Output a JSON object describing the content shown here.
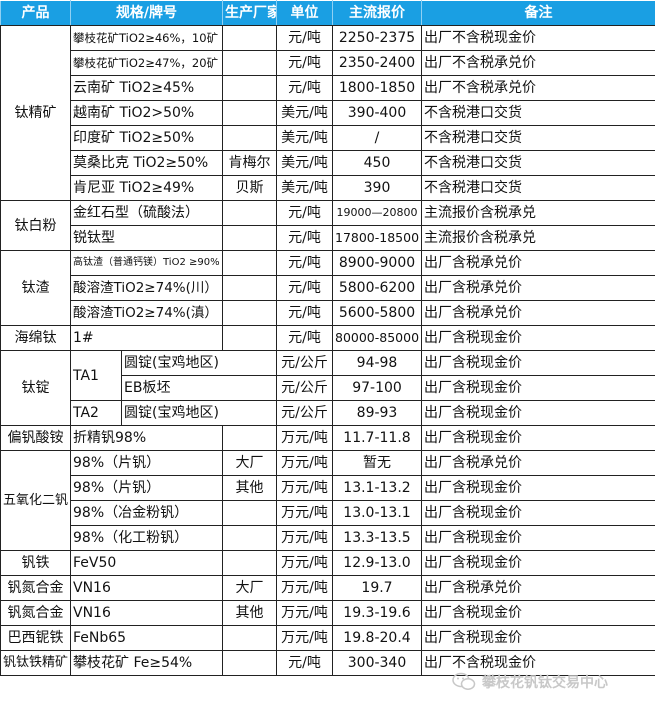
{
  "header": {
    "product": "产品",
    "spec": "规格/牌号",
    "factory": "生产厂家",
    "unit": "单位",
    "price": "主流报价",
    "note": "备注"
  },
  "colors": {
    "header_bg": "#1a9fe3",
    "header_text": "#ffffff",
    "border": "#222222"
  },
  "products": [
    {
      "name": "钛精矿",
      "items": [
        {
          "spec": "攀枝花矿TiO2≥46%，10矿",
          "factory": "",
          "unit": "元/吨",
          "price": "2250-2375",
          "note": "出厂不含税现金价"
        },
        {
          "spec": "攀枝花矿TiO2≥47%，20矿",
          "factory": "",
          "unit": "元/吨",
          "price": "2350-2400",
          "note": "出厂不含税承兑价"
        },
        {
          "spec": "云南矿 TiO2≥45%",
          "factory": "",
          "unit": "元/吨",
          "price": "1800-1850",
          "note": "出厂不含税承兑价"
        },
        {
          "spec": "越南矿 TiO2>50%",
          "factory": "",
          "unit": "美元/吨",
          "price": "390-400",
          "note": "不含税港口交货"
        },
        {
          "spec": "印度矿 TiO2≥50%",
          "factory": "",
          "unit": "美元/吨",
          "price": "/",
          "note": "不含税港口交货"
        },
        {
          "spec": "莫桑比克 TiO2≥50%",
          "factory": "肯梅尔",
          "unit": "美元/吨",
          "price": "450",
          "note": "不含税港口交货"
        },
        {
          "spec": "肯尼亚 TiO2≥49%",
          "factory": "贝斯",
          "unit": "美元/吨",
          "price": "390",
          "note": "不含税港口交货"
        }
      ]
    },
    {
      "name": "钛白粉",
      "items": [
        {
          "spec": "金红石型（硫酸法）",
          "factory": "",
          "unit": "元/吨",
          "price": "19000—20800",
          "note": "主流报价含税承兑"
        },
        {
          "spec": "锐钛型",
          "factory": "",
          "unit": "元/吨",
          "price": "17800-18500",
          "note": "主流报价含税承兑"
        }
      ]
    },
    {
      "name": "钛渣",
      "items": [
        {
          "spec": "高钛渣（普通钙镁）TiO2 ≥90%",
          "factory": "",
          "unit": "元/吨",
          "price": "8900-9000",
          "note": "出厂含税承兑价"
        },
        {
          "spec": "酸溶渣TiO2≥74%(川）",
          "factory": "",
          "unit": "元/吨",
          "price": "5800-6200",
          "note": "出厂含税承兑价"
        },
        {
          "spec": "酸溶渣TiO2≥74%(滇）",
          "factory": "",
          "unit": "元/吨",
          "price": "5600-5800",
          "note": "出厂含税承兑价"
        }
      ]
    },
    {
      "name": "海绵钛",
      "items": [
        {
          "spec": "1#",
          "factory": "",
          "unit": "元/吨",
          "price": "80000-85000",
          "note": "出厂含税现金价"
        }
      ]
    },
    {
      "name": "钛锭",
      "items": [
        {
          "grade": "TA1",
          "form": "圆锭(宝鸡地区)",
          "unit": "元/公斤",
          "price": "94-98",
          "note": "出厂含税现金价"
        },
        {
          "grade": "TA1",
          "form": "EB板坯",
          "unit": "元/公斤",
          "price": "97-100",
          "note": "出厂含税现金价"
        },
        {
          "grade": "TA2",
          "form": "圆锭(宝鸡地区)",
          "unit": "元/公斤",
          "price": "89-93",
          "note": "出厂含税现金价"
        }
      ]
    },
    {
      "name": "偏钒酸铵",
      "items": [
        {
          "spec": "折精钒98%",
          "factory": "",
          "unit": "万元/吨",
          "price": "11.7-11.8",
          "note": "出厂含税现金价"
        }
      ]
    },
    {
      "name": "五氧化二钒",
      "items": [
        {
          "spec": "98%（片钒）",
          "factory": "大厂",
          "unit": "万元/吨",
          "price": "暂无",
          "note": "出厂含税承兑价"
        },
        {
          "spec": "98%（片钒）",
          "factory": "其他",
          "unit": "万元/吨",
          "price": "13.1-13.2",
          "note": "出厂含税现金价"
        },
        {
          "spec": "98%（冶金粉钒）",
          "factory": "",
          "unit": "万元/吨",
          "price": "13.0-13.1",
          "note": "出厂含税现金价"
        },
        {
          "spec": "98%（化工粉钒）",
          "factory": "",
          "unit": "万元/吨",
          "price": "13.3-13.5",
          "note": "出厂含税现金价"
        }
      ]
    },
    {
      "name": "钒铁",
      "items": [
        {
          "spec": "FeV50",
          "factory": "",
          "unit": "万元/吨",
          "price": "12.9-13.0",
          "note": "出厂含税现金价"
        }
      ]
    },
    {
      "name": "钒氮合金",
      "items": [
        {
          "spec": "VN16",
          "factory": "大厂",
          "unit": "万元/吨",
          "price": "19.7",
          "note": "出厂含税承兑价"
        }
      ]
    },
    {
      "name": "钒氮合金",
      "items": [
        {
          "spec": "VN16",
          "factory": "其他",
          "unit": "万元/吨",
          "price": "19.3-19.6",
          "note": "出厂含税现金价"
        }
      ]
    },
    {
      "name": "巴西铌铁",
      "items": [
        {
          "spec": "FeNb65",
          "factory": "",
          "unit": "万元/吨",
          "price": "19.8-20.4",
          "note": "出厂含税现金价"
        }
      ]
    },
    {
      "name": "钒钛铁精矿",
      "items": [
        {
          "spec": "攀枝花矿 Fe≥54%",
          "factory": "",
          "unit": "元/吨",
          "price": "300-340",
          "note": "出厂不含税现金价"
        }
      ]
    }
  ],
  "watermark": {
    "text": "攀枝花钒钛交易中心",
    "icon": "wechat-icon"
  }
}
